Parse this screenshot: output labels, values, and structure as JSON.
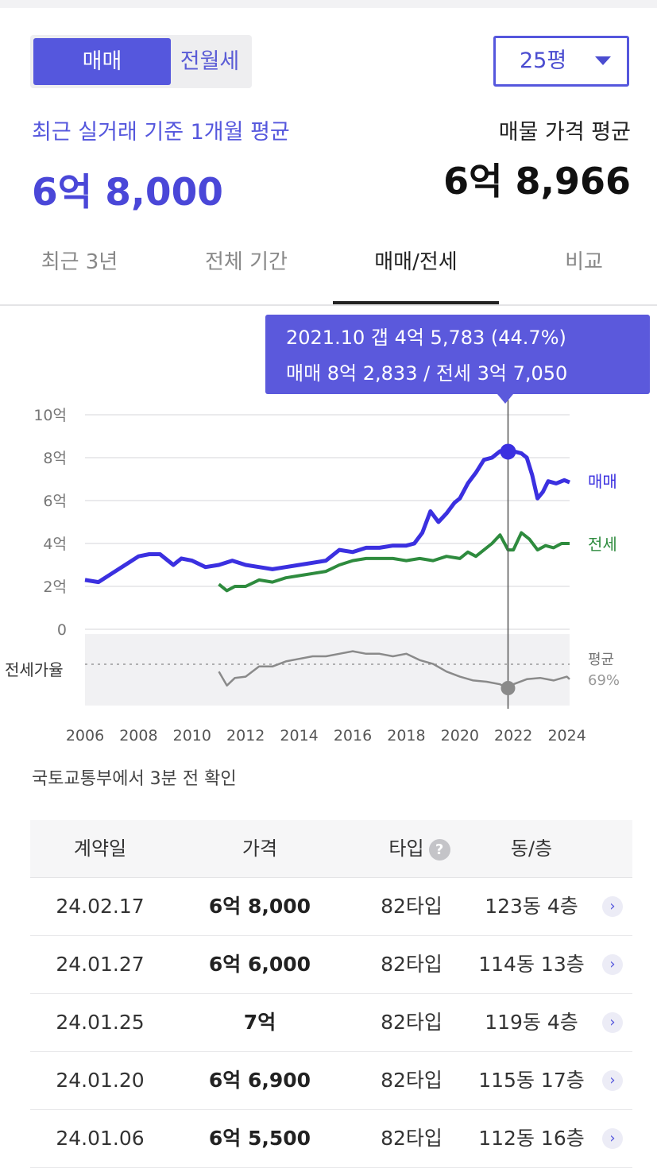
{
  "toggle": {
    "sale": "매매",
    "rent": "전월세"
  },
  "area_select": {
    "value": "25평"
  },
  "summary": {
    "recent_label": "최근 실거래 기준 1개월 평균",
    "recent_value": "6억 8,000",
    "listing_label": "매물 가격 평균",
    "listing_value": "6억 8,966"
  },
  "tabs": [
    "최근 3년",
    "전체 기간",
    "매매/전세",
    "비교"
  ],
  "tooltip": {
    "line1": "2021.10  갭 4억 5,783 (44.7%)",
    "line2": "매매 8억 2,833 / 전세 3억 7,050"
  },
  "chart_data": {
    "type": "line",
    "y_unit": "억",
    "ylim": [
      0,
      10
    ],
    "y_ticks": [
      "10억",
      "8억",
      "6억",
      "4억",
      "2억",
      "0"
    ],
    "x_ticks": [
      "2006",
      "2008",
      "2010",
      "2012",
      "2014",
      "2016",
      "2018",
      "2020",
      "2022",
      "2024"
    ],
    "series": [
      {
        "name": "매매",
        "color": "#3b30e0",
        "x": [
          2006.0,
          2006.5,
          2007.0,
          2007.5,
          2008.0,
          2008.4,
          2008.8,
          2009.3,
          2009.6,
          2010.0,
          2010.5,
          2011.0,
          2011.5,
          2012.0,
          2012.5,
          2013.0,
          2013.5,
          2014.0,
          2014.5,
          2015.0,
          2015.5,
          2016.0,
          2016.5,
          2017.0,
          2017.5,
          2018.0,
          2018.3,
          2018.6,
          2018.9,
          2019.2,
          2019.5,
          2019.8,
          2020.0,
          2020.3,
          2020.6,
          2020.9,
          2021.2,
          2021.5,
          2021.8,
          2022.0,
          2022.3,
          2022.5,
          2022.7,
          2022.9,
          2023.1,
          2023.3,
          2023.6,
          2023.9,
          2024.1
        ],
        "y": [
          2.3,
          2.2,
          2.6,
          3.0,
          3.4,
          3.5,
          3.5,
          3.0,
          3.3,
          3.2,
          2.9,
          3.0,
          3.2,
          3.0,
          2.9,
          2.8,
          2.9,
          3.0,
          3.1,
          3.2,
          3.7,
          3.6,
          3.8,
          3.8,
          3.9,
          3.9,
          4.0,
          4.5,
          5.5,
          5.0,
          5.4,
          5.9,
          6.1,
          6.8,
          7.3,
          7.9,
          8.0,
          8.3,
          8.25,
          8.3,
          8.2,
          8.0,
          7.2,
          6.1,
          6.4,
          6.9,
          6.8,
          6.95,
          6.85
        ]
      },
      {
        "name": "전세",
        "color": "#2e8b3e",
        "x": [
          2011.0,
          2011.3,
          2011.6,
          2012.0,
          2012.5,
          2013.0,
          2013.5,
          2014.0,
          2014.5,
          2015.0,
          2015.5,
          2016.0,
          2016.5,
          2017.0,
          2017.5,
          2018.0,
          2018.5,
          2019.0,
          2019.5,
          2020.0,
          2020.3,
          2020.6,
          2020.9,
          2021.2,
          2021.5,
          2021.8,
          2022.0,
          2022.3,
          2022.6,
          2022.9,
          2023.2,
          2023.5,
          2023.8,
          2024.1
        ],
        "y": [
          2.1,
          1.8,
          2.0,
          2.0,
          2.3,
          2.2,
          2.4,
          2.5,
          2.6,
          2.7,
          3.0,
          3.2,
          3.3,
          3.3,
          3.3,
          3.2,
          3.3,
          3.2,
          3.4,
          3.3,
          3.6,
          3.4,
          3.7,
          4.0,
          4.4,
          3.7,
          3.7,
          4.5,
          4.2,
          3.7,
          3.9,
          3.8,
          4.0,
          4.0
        ]
      }
    ],
    "series_labels": {
      "sale": "매매",
      "rent": "전세"
    },
    "ratio_panel": {
      "label": "전세가율",
      "avg_label": "평균",
      "avg_value": "69%",
      "x": [
        2011.0,
        2011.3,
        2011.6,
        2012.0,
        2012.5,
        2013.0,
        2013.5,
        2014.0,
        2014.5,
        2015.0,
        2015.5,
        2016.0,
        2016.5,
        2017.0,
        2017.5,
        2018.0,
        2018.5,
        2019.0,
        2019.5,
        2020.0,
        2020.5,
        2021.0,
        2021.5,
        2021.8,
        2022.0,
        2022.5,
        2023.0,
        2023.5,
        2024.0,
        2024.1
      ],
      "y": [
        68,
        57,
        63,
        64,
        72,
        72,
        76,
        78,
        80,
        80,
        82,
        84,
        82,
        82,
        80,
        82,
        77,
        74,
        68,
        64,
        61,
        60,
        58,
        55,
        58,
        62,
        63,
        61,
        64,
        62
      ]
    },
    "highlight": {
      "x": 2021.8,
      "sale": 8.28,
      "ratio": 55
    }
  },
  "source_note": "국토교통부에서 3분 전 확인",
  "table": {
    "headers": [
      "계약일",
      "가격",
      "타입",
      "동/층"
    ],
    "help_icon": "?",
    "rows": [
      {
        "date": "24.02.17",
        "price": "6억 8,000",
        "type": "82타입",
        "unit": "123동 4층"
      },
      {
        "date": "24.01.27",
        "price": "6억 6,000",
        "type": "82타입",
        "unit": "114동 13층"
      },
      {
        "date": "24.01.25",
        "price": "7억",
        "type": "82타입",
        "unit": "119동 4층"
      },
      {
        "date": "24.01.20",
        "price": "6억 6,900",
        "type": "82타입",
        "unit": "115동 17층"
      },
      {
        "date": "24.01.06",
        "price": "6억 5,500",
        "type": "82타입",
        "unit": "112동 16층"
      }
    ]
  }
}
